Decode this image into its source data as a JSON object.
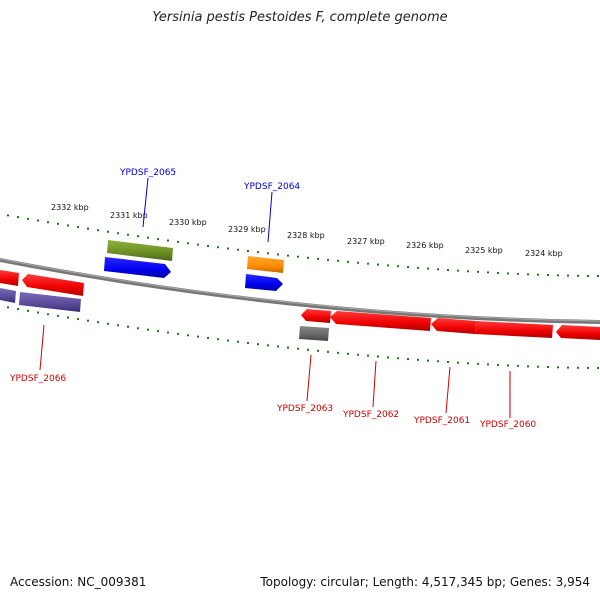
{
  "title": "Yersinia pestis Pestoides F, complete genome",
  "footer": {
    "accession": "Accession: NC_009381",
    "summary": "Topology: circular; Length: 4,517,345 bp; Genes: 3,954"
  },
  "colors": {
    "backbone": "#888888",
    "tick": "#1a7a1a",
    "label_forward": "#0000cc",
    "label_reverse": "#cc0000"
  },
  "scale_labels": [
    "2332 kbp",
    "2331 kbp",
    "2330 kbp",
    "2329 kbp",
    "2328 kbp",
    "2327 kbp",
    "2326 kbp",
    "2325 kbp",
    "2324 kbp"
  ],
  "genes": [
    {
      "id": "YPDSF_2065",
      "strand": "forward",
      "color": "#6b8e23"
    },
    {
      "id": "YPDSF_2064",
      "strand": "forward",
      "color": "#ff8c00"
    },
    {
      "id": "YPDSF_2066",
      "strand": "reverse",
      "color": "#5a4a9a"
    },
    {
      "id": "YPDSF_2063",
      "strand": "reverse",
      "color": "#666666"
    },
    {
      "id": "YPDSF_2062",
      "strand": "reverse",
      "color": "#ff0000"
    },
    {
      "id": "YPDSF_2061",
      "strand": "reverse",
      "color": "#ff0000"
    },
    {
      "id": "YPDSF_2060",
      "strand": "reverse",
      "color": "#ff0000"
    }
  ]
}
